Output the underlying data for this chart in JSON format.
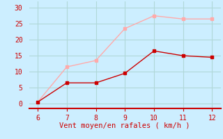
{
  "x": [
    6,
    7,
    8,
    9,
    10,
    11,
    12
  ],
  "y_rafales": [
    0.5,
    11.5,
    13.5,
    23.5,
    27.5,
    26.5,
    26.5
  ],
  "y_moyen": [
    0.5,
    6.5,
    6.5,
    9.5,
    16.5,
    15.0,
    14.5
  ],
  "line_color_rafales": "#ffaaaa",
  "line_color_moyen": "#cc0000",
  "marker_color": "#cc0000",
  "bg_color": "#cceeff",
  "grid_color": "#b0d8d8",
  "axis_color": "#cc0000",
  "xlabel": "Vent moyen/en rafales ( km/h )",
  "xlim": [
    5.7,
    12.3
  ],
  "ylim": [
    -1.5,
    32
  ],
  "yticks": [
    0,
    5,
    10,
    15,
    20,
    25,
    30
  ],
  "xticks": [
    6,
    7,
    8,
    9,
    10,
    11,
    12
  ],
  "xlabel_fontsize": 7.5,
  "tick_fontsize": 7
}
